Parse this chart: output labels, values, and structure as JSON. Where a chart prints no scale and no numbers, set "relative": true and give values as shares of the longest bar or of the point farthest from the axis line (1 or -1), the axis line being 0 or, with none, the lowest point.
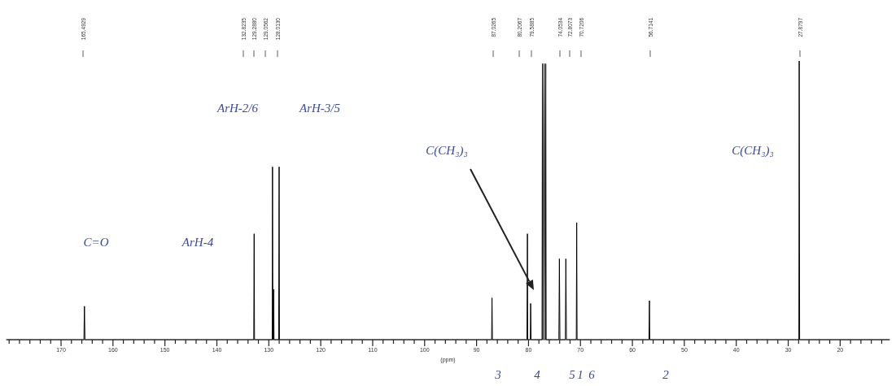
{
  "chart_data": {
    "type": "line",
    "relative": true,
    "xlabel": "(ppm)",
    "xlim": [
      180.5,
      10.5
    ],
    "xticks": [
      {
        "value": 180,
        "label": null
      },
      {
        "value": 178,
        "label": null
      },
      {
        "value": 176,
        "label": null
      },
      {
        "value": 174,
        "label": null
      },
      {
        "value": 172,
        "label": null
      },
      170,
      {
        "value": 168,
        "label": null
      },
      {
        "value": 166,
        "label": null
      },
      {
        "value": 164,
        "label": null
      },
      {
        "value": 162,
        "label": null
      },
      160,
      {
        "value": 158,
        "label": null
      },
      {
        "value": 156,
        "label": null
      },
      {
        "value": 154,
        "label": null
      },
      {
        "value": 152,
        "label": null
      },
      150,
      {
        "value": 148,
        "label": null
      },
      {
        "value": 146,
        "label": null
      },
      {
        "value": 144,
        "label": null
      },
      {
        "value": 142,
        "label": null
      },
      140,
      {
        "value": 138,
        "label": null
      },
      {
        "value": 136,
        "label": null
      },
      {
        "value": 134,
        "label": null
      },
      {
        "value": 132,
        "label": null
      },
      130,
      {
        "value": 128,
        "label": null
      },
      {
        "value": 126,
        "label": null
      },
      {
        "value": 124,
        "label": null
      },
      {
        "value": 122,
        "label": null
      },
      120,
      {
        "value": 118,
        "label": null
      },
      {
        "value": 116,
        "label": null
      },
      {
        "value": 114,
        "label": null
      },
      {
        "value": 112,
        "label": null
      },
      110,
      {
        "value": 108,
        "label": null
      },
      {
        "value": 106,
        "label": null
      },
      {
        "value": 104,
        "label": null
      },
      {
        "value": 102,
        "label": null
      },
      100,
      {
        "value": 98,
        "label": null
      },
      {
        "value": 96,
        "label": null
      },
      {
        "value": 94,
        "label": null
      },
      {
        "value": 92,
        "label": null
      },
      90,
      {
        "value": 88,
        "label": null
      },
      {
        "value": 86,
        "label": null
      },
      {
        "value": 84,
        "label": null
      },
      {
        "value": 82,
        "label": null
      },
      80,
      {
        "value": 78,
        "label": null
      },
      {
        "value": 76,
        "label": null
      },
      {
        "value": 74,
        "label": null
      },
      {
        "value": 72,
        "label": null
      },
      70,
      {
        "value": 68,
        "label": null
      },
      {
        "value": 66,
        "label": null
      },
      {
        "value": 64,
        "label": null
      },
      {
        "value": 62,
        "label": null
      },
      60,
      {
        "value": 58,
        "label": null
      },
      {
        "value": 56,
        "label": null
      },
      {
        "value": 54,
        "label": null
      },
      {
        "value": 52,
        "label": null
      },
      50,
      {
        "value": 48,
        "label": null
      },
      {
        "value": 46,
        "label": null
      },
      {
        "value": 44,
        "label": null
      },
      {
        "value": 42,
        "label": null
      },
      40,
      {
        "value": 38,
        "label": null
      },
      {
        "value": 36,
        "label": null
      },
      {
        "value": 34,
        "label": null
      },
      {
        "value": 32,
        "label": null
      },
      30,
      {
        "value": 28,
        "label": null
      },
      {
        "value": 26,
        "label": null
      },
      {
        "value": 24,
        "label": null
      },
      {
        "value": 22,
        "label": null
      },
      20,
      {
        "value": 18,
        "label": null
      },
      {
        "value": 16,
        "label": null
      },
      {
        "value": 14,
        "label": null
      },
      {
        "value": 12,
        "label": null
      }
    ],
    "series": [
      {
        "color": "#000000",
        "x": [
          180.5,
          165.6,
          165.4929,
          165.4,
          132.9,
          132.8235,
          132.75,
          129.35,
          129.288,
          129.2,
          129.1,
          129.0562,
          129.0,
          128.1,
          128.013,
          127.95,
          87.1,
          87.0265,
          86.95,
          80.3,
          80.2067,
          80.15,
          79.65,
          79.5885,
          79.5,
          77.4,
          77.32,
          77.2,
          77.0,
          76.8,
          76.68,
          76.6,
          74.15,
          74.0534,
          73.95,
          72.9,
          72.8073,
          72.7,
          70.8,
          70.7206,
          70.65,
          56.8,
          56.7141,
          56.65,
          27.95,
          27.8797,
          27.8,
          10.5
        ],
        "values": [
          0,
          0,
          0.12,
          0,
          0,
          0.38,
          0,
          0,
          0.62,
          0,
          0,
          0.18,
          0,
          0,
          0.62,
          0,
          0,
          0.15,
          0,
          0,
          0.38,
          0,
          0,
          0.13,
          0,
          0,
          0.99,
          0,
          0.99,
          0,
          0.99,
          0,
          0,
          0.29,
          0,
          0,
          0.29,
          0,
          0,
          0.42,
          0,
          0,
          0.14,
          0,
          0,
          1,
          0,
          0
        ]
      }
    ],
    "annotations": [
      "C=O",
      "ArH-4",
      "ArH-2/6",
      "ArH-3/5",
      "C(CH₃)₃",
      "C(CH₃)₃",
      "165.4929",
      "132.8235",
      "129.2880",
      "129.0562",
      "128.0130",
      "87.0265",
      "80.2067",
      "79.5885",
      "74.0534",
      "72.8073",
      "70.7206",
      "56.7141",
      "27.8797",
      "3",
      "4",
      "5",
      "1",
      "6",
      "2"
    ]
  }
}
